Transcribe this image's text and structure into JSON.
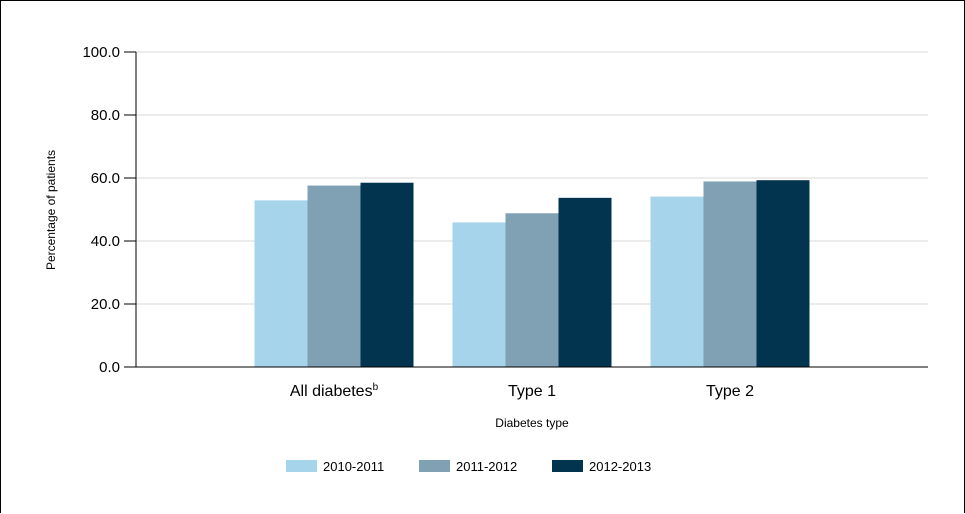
{
  "chart_data": {
    "type": "bar",
    "title": "",
    "xlabel": "Diabetes type",
    "ylabel": "Percentage of patients",
    "ylim": [
      0,
      100
    ],
    "yticks": [
      "0.0",
      "20.0",
      "40.0",
      "60.0",
      "80.0",
      "100.0"
    ],
    "grid": true,
    "legend_position": "bottom",
    "categories": [
      {
        "label": "All diabetes",
        "superscript": "b"
      },
      {
        "label": "Type 1",
        "superscript": ""
      },
      {
        "label": "Type 2",
        "superscript": ""
      }
    ],
    "series": [
      {
        "name": "2010-2011",
        "color": "#a6d4ea",
        "values": [
          52.9,
          45.9,
          54.1
        ]
      },
      {
        "name": "2011-2012",
        "color": "#7fa1b3",
        "values": [
          57.6,
          48.8,
          58.9
        ]
      },
      {
        "name": "2012-2013",
        "color": "#02334f",
        "values": [
          58.5,
          53.7,
          59.3
        ]
      }
    ]
  }
}
